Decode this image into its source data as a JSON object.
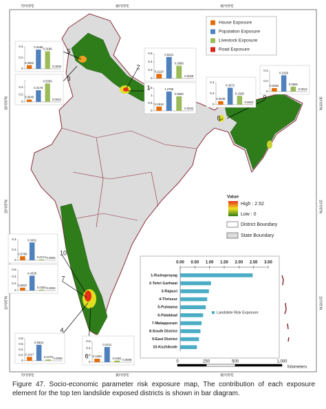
{
  "coordinates": {
    "longitudes": [
      "70°0'0\"E",
      "80°0'0\"E",
      "90°0'0\"E"
    ],
    "latitudes": [
      "30°0'0\"N",
      "20°0'0\"N",
      "10°0'0\"N"
    ]
  },
  "legend": [
    {
      "name": "House Exposure",
      "color": "#e36c09"
    },
    {
      "name": "Population Exposure",
      "color": "#4f81bd"
    },
    {
      "name": "Livestock Exposure",
      "color": "#9bbb59"
    },
    {
      "name": "Road Exposure",
      "color": "#d42a1e"
    }
  ],
  "value_legend": {
    "title": "Value",
    "high": "High : 2.52",
    "low": "Low : 0",
    "district": "District Boundary",
    "state": "State Boundary"
  },
  "scale_bar": {
    "labels": [
      "0",
      "250",
      "500",
      "1,000"
    ],
    "unit": "Kilometers"
  },
  "chart_data": [
    {
      "type": "hbar",
      "categories": [
        "1-Rudraprayag",
        "2-Tehri Garhwal",
        "3-Rajauri",
        "4-Thrissur",
        "5-Pulwama",
        "6-Palakkad",
        "7-Malappuram",
        "8-South District",
        "9-East District",
        "10-Kozhikode"
      ],
      "values": [
        2.47,
        1.05,
        0.98,
        0.92,
        0.87,
        0.78,
        0.73,
        0.69,
        0.64,
        0.57
      ],
      "color": "#4bacc6",
      "legend_label": "Landslide Risk Exposure",
      "xlim": [
        0,
        3
      ],
      "xticks": [
        {
          "value": 0,
          "label": "0.00"
        },
        {
          "value": 0.5,
          "label": "0.50"
        },
        {
          "value": 1,
          "label": "1.00"
        },
        {
          "value": 1.5,
          "label": "1.50"
        },
        {
          "value": 2,
          "label": "2.00"
        },
        {
          "value": 2.5,
          "label": "2.50"
        },
        {
          "value": 3,
          "label": "3.00"
        }
      ]
    },
    {
      "type": "bar",
      "label": "1",
      "values": [
        0.2819,
        1.2755,
        0.96,
        0.0042
      ],
      "value_labels": [
        "0.2819",
        "1.2755",
        "0.9600",
        "0.0042"
      ],
      "ylim": [
        0,
        1.5
      ],
      "yticks": [
        0,
        0.5,
        1,
        1.5
      ]
    },
    {
      "type": "bar",
      "label": "2",
      "values": [
        0.112,
        0.5221,
        0.3088,
        0.0028
      ],
      "value_labels": [
        "0.1120",
        "0.5221",
        "0.3088",
        "0.0028"
      ],
      "ylim": [
        0,
        0.6
      ],
      "yticks": [
        0,
        0.2,
        0.4,
        0.6
      ]
    },
    {
      "type": "bar",
      "label": "3",
      "values": [
        0.0645,
        0.3176,
        0.5005,
        0.001
      ],
      "value_labels": [
        "0.0645",
        "0.3176",
        "0.5005",
        "0.0010"
      ],
      "ylim": [
        0,
        0.6
      ],
      "yticks": [
        0,
        0.2,
        0.4
      ]
    },
    {
      "type": "bar",
      "label": "4",
      "values": [
        0.1417,
        0.5824,
        0.0479,
        0.0006
      ],
      "value_labels": [
        "0.1417",
        "0.5824",
        "0.0479",
        "0.0006"
      ],
      "ylim": [
        0,
        0.8
      ],
      "yticks": [
        0,
        0.2,
        0.4,
        0.6,
        0.8
      ]
    },
    {
      "type": "bar",
      "label": "5",
      "values": [
        0.0662,
        0.3496,
        0.3186,
        0.0008
      ],
      "value_labels": [
        "0.0662",
        "0.3496",
        "0.3186",
        "0.0008"
      ],
      "ylim": [
        0,
        0.4
      ],
      "yticks": [
        0,
        0.2,
        0.4
      ]
    },
    {
      "type": "bar",
      "label": "6",
      "values": [
        0.1,
        0.4411,
        0.0461,
        0.0008
      ],
      "value_labels": [
        "0.1000",
        "0.4411",
        "0.0461",
        "0.0008"
      ],
      "ylim": [
        0,
        0.6
      ],
      "yticks": [
        0,
        0.2,
        0.4,
        0.6
      ]
    },
    {
      "type": "bar",
      "label": "7",
      "values": [
        0.0837,
        0.4335,
        0.0252,
        0.0004
      ],
      "value_labels": [
        "0.0837",
        "0.4335",
        "0.0252",
        "0.0004"
      ],
      "ylim": [
        0,
        0.6
      ],
      "yticks": [
        0,
        0.2,
        0.4,
        0.6
      ]
    },
    {
      "type": "bar",
      "label": "8",
      "values": [
        0.0639,
        0.3072,
        0.1595,
        0.0022
      ],
      "value_labels": [
        "0.0639",
        "0.3072",
        "0.1595",
        "0.0022"
      ],
      "ylim": [
        0,
        0.4
      ],
      "yticks": [
        0,
        0.2,
        0.4
      ]
    },
    {
      "type": "bar",
      "label": "9",
      "values": [
        0.0684,
        0.315,
        0.0966,
        0.0013
      ],
      "value_labels": [
        "0.0684",
        "0.3150",
        "0.0966",
        "0.0013"
      ],
      "ylim": [
        0,
        0.4
      ],
      "yticks": [
        0,
        0.2,
        0.4
      ]
    },
    {
      "type": "bar",
      "label": "10",
      "values": [
        0.078,
        0.3451,
        0.0174,
        0.0004
      ],
      "value_labels": [
        "0.0780",
        "0.3451",
        "0.0174",
        "0.0004"
      ],
      "ylim": [
        0,
        0.4
      ],
      "yticks": [
        0,
        0.2,
        0.4
      ]
    }
  ],
  "caption": "Figure 47. Socio-economic parameter risk exposure map, The contribution of each exposure element for the top ten landslide exposed districts is shown in bar diagram."
}
